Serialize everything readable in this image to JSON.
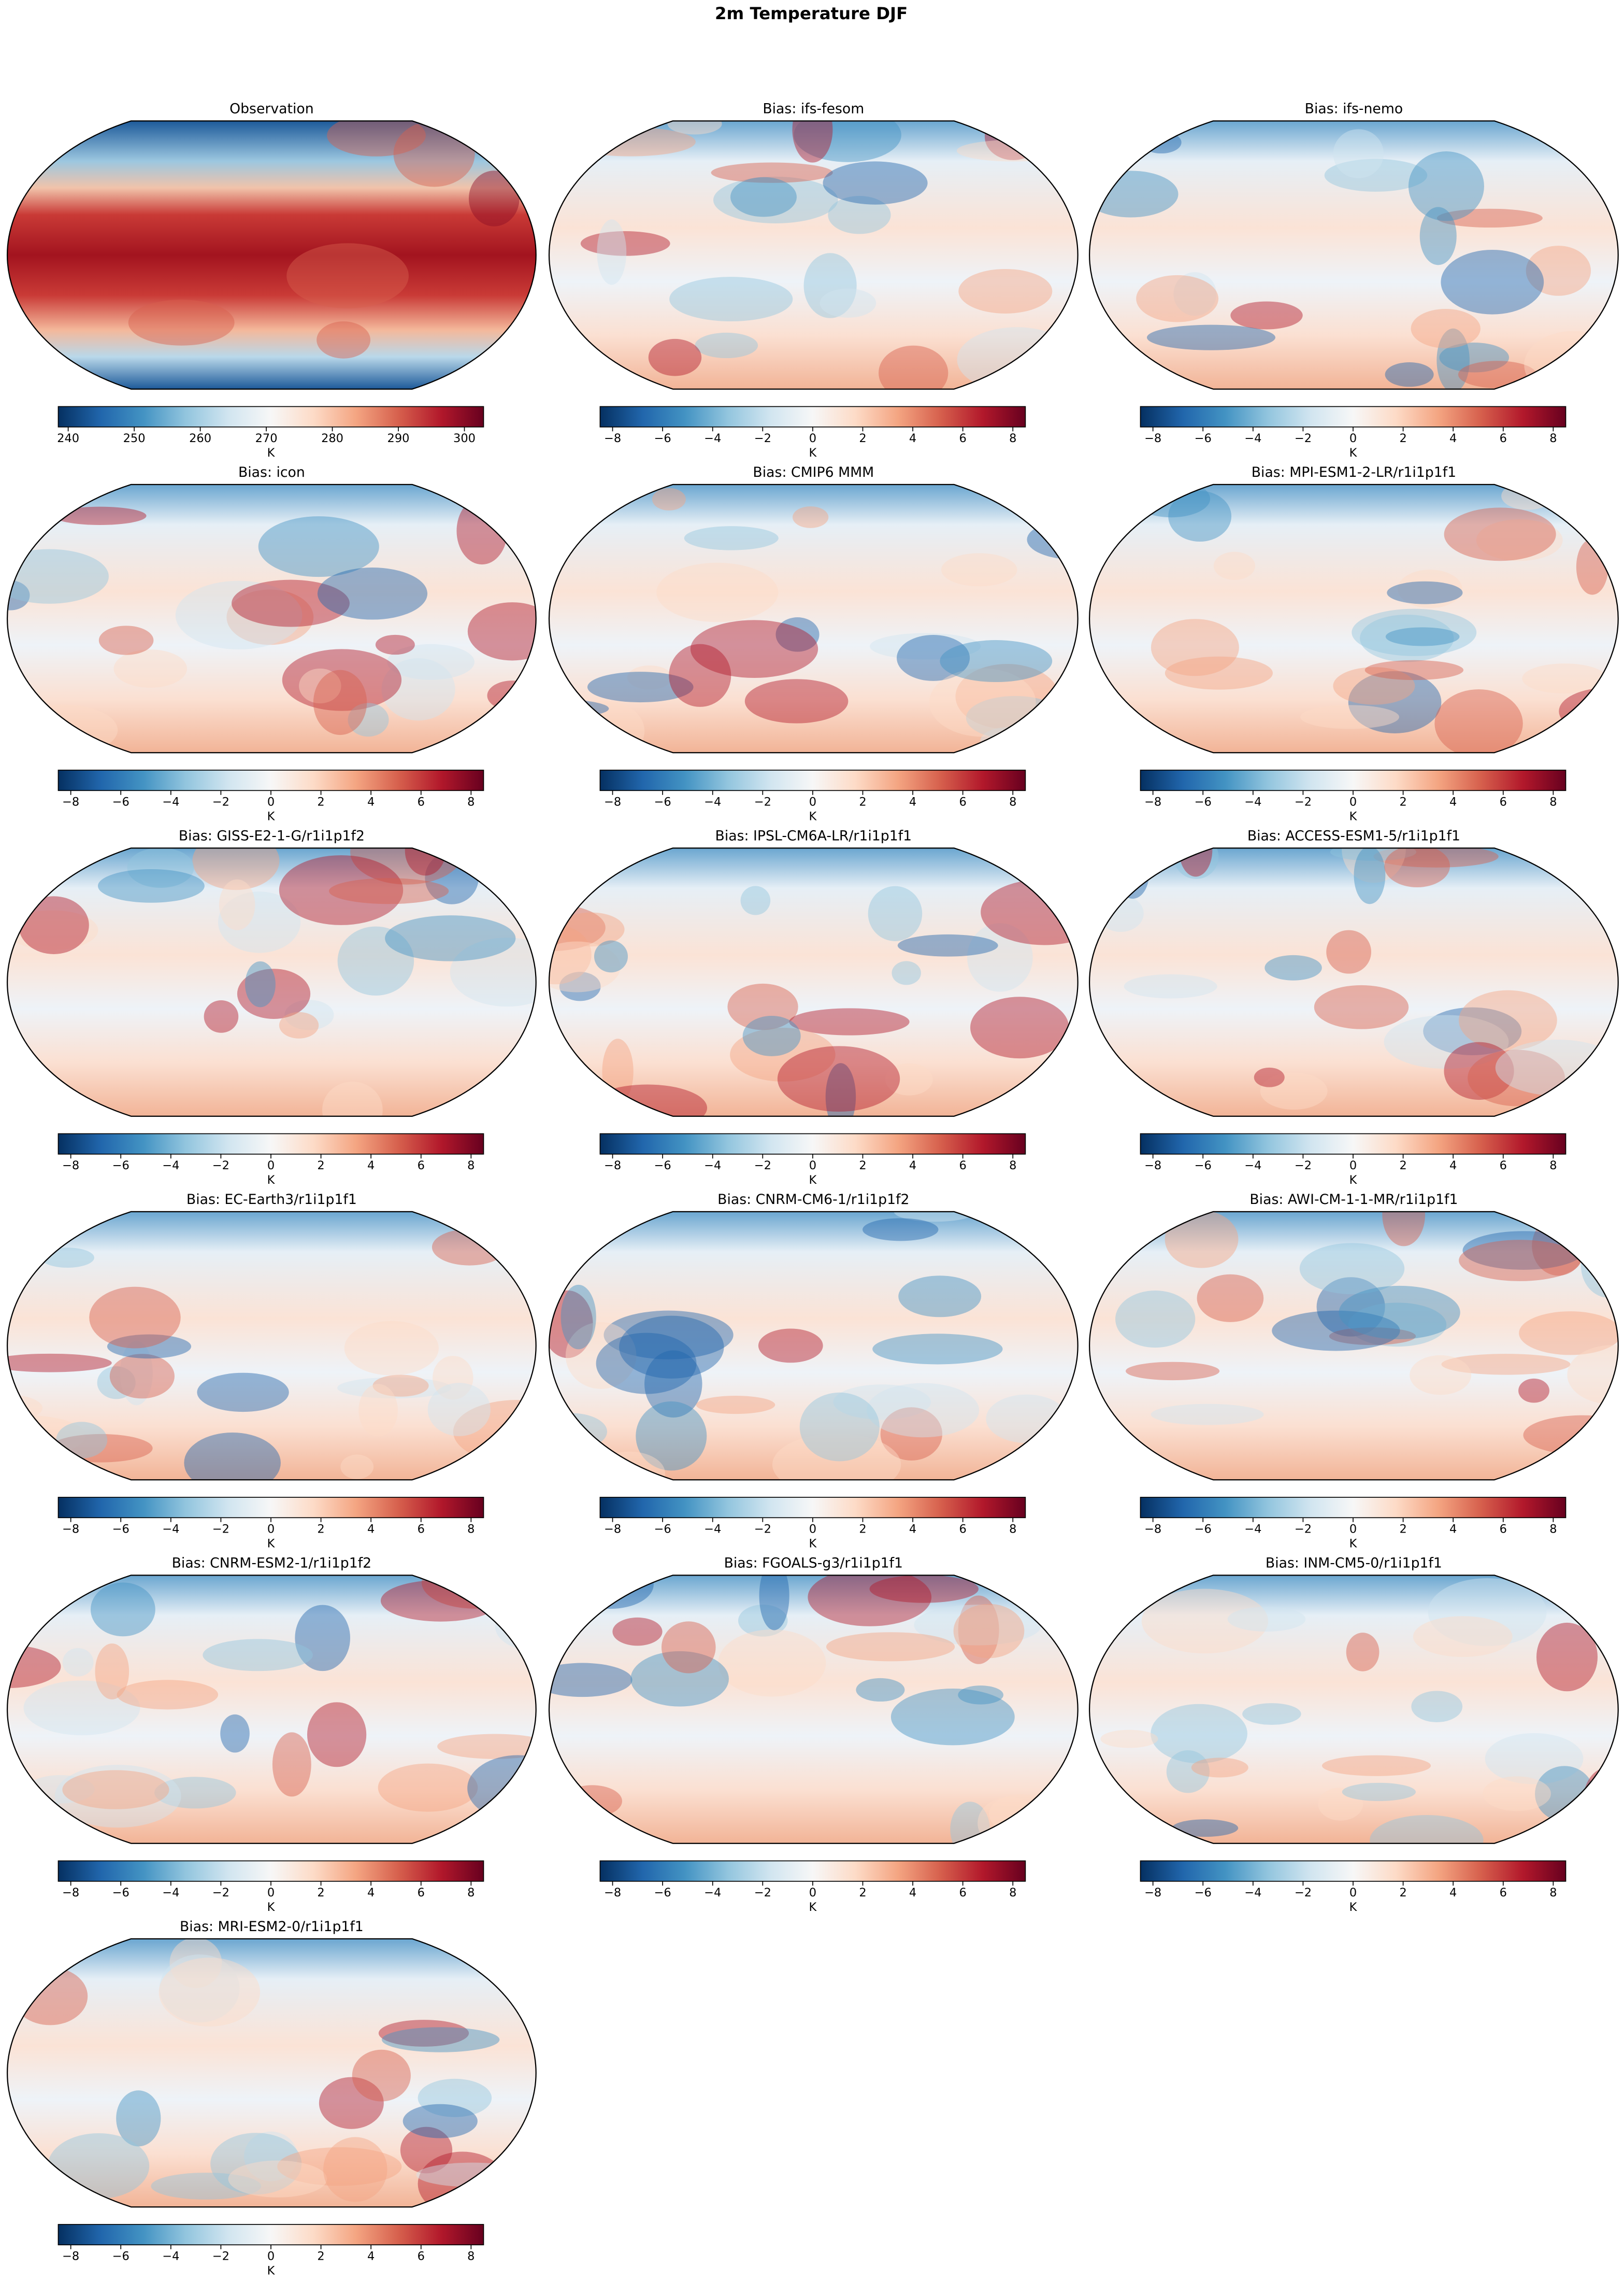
{
  "title": "2m Temperature DJF",
  "panels": [
    {
      "title": "Observation",
      "colorbar": {
        "label": "K",
        "lim": [
          238.5,
          302.9
        ],
        "ticks": [
          240,
          250,
          260,
          270,
          280,
          290,
          300
        ]
      }
    },
    {
      "title": "Bias: ifs-fesom",
      "colorbar": {
        "label": "K",
        "lim": [
          -8.5,
          8.5
        ],
        "ticks": [
          {
            "value": -8,
            "label": "−8"
          },
          {
            "value": -6,
            "label": "−6"
          },
          {
            "value": -4,
            "label": "−4"
          },
          {
            "value": -2,
            "label": "−2"
          },
          0,
          2,
          4,
          6,
          8
        ]
      }
    },
    {
      "title": "Bias: ifs-nemo",
      "colorbar": {
        "label": "K",
        "lim": [
          -8.5,
          8.5
        ],
        "ticks": [
          {
            "value": -8,
            "label": "−8"
          },
          {
            "value": -6,
            "label": "−6"
          },
          {
            "value": -4,
            "label": "−4"
          },
          {
            "value": -2,
            "label": "−2"
          },
          0,
          2,
          4,
          6,
          8
        ]
      }
    },
    {
      "title": "Bias: icon",
      "colorbar": {
        "label": "K",
        "lim": [
          -8.5,
          8.5
        ],
        "ticks": [
          {
            "value": -8,
            "label": "−8"
          },
          {
            "value": -6,
            "label": "−6"
          },
          {
            "value": -4,
            "label": "−4"
          },
          {
            "value": -2,
            "label": "−2"
          },
          0,
          2,
          4,
          6,
          8
        ]
      }
    },
    {
      "title": "Bias: CMIP6 MMM",
      "colorbar": {
        "label": "K",
        "lim": [
          -8.5,
          8.5
        ],
        "ticks": [
          {
            "value": -8,
            "label": "−8"
          },
          {
            "value": -6,
            "label": "−6"
          },
          {
            "value": -4,
            "label": "−4"
          },
          {
            "value": -2,
            "label": "−2"
          },
          0,
          2,
          4,
          6,
          8
        ]
      }
    },
    {
      "title": "Bias: MPI-ESM1-2-LR/r1i1p1f1",
      "colorbar": {
        "label": "K",
        "lim": [
          -8.5,
          8.5
        ],
        "ticks": [
          {
            "value": -8,
            "label": "−8"
          },
          {
            "value": -6,
            "label": "−6"
          },
          {
            "value": -4,
            "label": "−4"
          },
          {
            "value": -2,
            "label": "−2"
          },
          0,
          2,
          4,
          6,
          8
        ]
      }
    },
    {
      "title": "Bias: GISS-E2-1-G/r1i1p1f2",
      "colorbar": {
        "label": "K",
        "lim": [
          -8.5,
          8.5
        ],
        "ticks": [
          {
            "value": -8,
            "label": "−8"
          },
          {
            "value": -6,
            "label": "−6"
          },
          {
            "value": -4,
            "label": "−4"
          },
          {
            "value": -2,
            "label": "−2"
          },
          0,
          2,
          4,
          6,
          8
        ]
      }
    },
    {
      "title": "Bias: IPSL-CM6A-LR/r1i1p1f1",
      "colorbar": {
        "label": "K",
        "lim": [
          -8.5,
          8.5
        ],
        "ticks": [
          {
            "value": -8,
            "label": "−8"
          },
          {
            "value": -6,
            "label": "−6"
          },
          {
            "value": -4,
            "label": "−4"
          },
          {
            "value": -2,
            "label": "−2"
          },
          0,
          2,
          4,
          6,
          8
        ]
      }
    },
    {
      "title": "Bias: ACCESS-ESM1-5/r1i1p1f1",
      "colorbar": {
        "label": "K",
        "lim": [
          -8.5,
          8.5
        ],
        "ticks": [
          {
            "value": -8,
            "label": "−8"
          },
          {
            "value": -6,
            "label": "−6"
          },
          {
            "value": -4,
            "label": "−4"
          },
          {
            "value": -2,
            "label": "−2"
          },
          0,
          2,
          4,
          6,
          8
        ]
      }
    },
    {
      "title": "Bias: EC-Earth3/r1i1p1f1",
      "colorbar": {
        "label": "K",
        "lim": [
          -8.5,
          8.5
        ],
        "ticks": [
          {
            "value": -8,
            "label": "−8"
          },
          {
            "value": -6,
            "label": "−6"
          },
          {
            "value": -4,
            "label": "−4"
          },
          {
            "value": -2,
            "label": "−2"
          },
          0,
          2,
          4,
          6,
          8
        ]
      }
    },
    {
      "title": "Bias: CNRM-CM6-1/r1i1p1f2",
      "colorbar": {
        "label": "K",
        "lim": [
          -8.5,
          8.5
        ],
        "ticks": [
          {
            "value": -8,
            "label": "−8"
          },
          {
            "value": -6,
            "label": "−6"
          },
          {
            "value": -4,
            "label": "−4"
          },
          {
            "value": -2,
            "label": "−2"
          },
          0,
          2,
          4,
          6,
          8
        ]
      }
    },
    {
      "title": "Bias: AWI-CM-1-1-MR/r1i1p1f1",
      "colorbar": {
        "label": "K",
        "lim": [
          -8.5,
          8.5
        ],
        "ticks": [
          {
            "value": -8,
            "label": "−8"
          },
          {
            "value": -6,
            "label": "−6"
          },
          {
            "value": -4,
            "label": "−4"
          },
          {
            "value": -2,
            "label": "−2"
          },
          0,
          2,
          4,
          6,
          8
        ]
      }
    },
    {
      "title": "Bias: CNRM-ESM2-1/r1i1p1f2",
      "colorbar": {
        "label": "K",
        "lim": [
          -8.5,
          8.5
        ],
        "ticks": [
          {
            "value": -8,
            "label": "−8"
          },
          {
            "value": -6,
            "label": "−6"
          },
          {
            "value": -4,
            "label": "−4"
          },
          {
            "value": -2,
            "label": "−2"
          },
          0,
          2,
          4,
          6,
          8
        ]
      }
    },
    {
      "title": "Bias: FGOALS-g3/r1i1p1f1",
      "colorbar": {
        "label": "K",
        "lim": [
          -8.5,
          8.5
        ],
        "ticks": [
          {
            "value": -8,
            "label": "−8"
          },
          {
            "value": -6,
            "label": "−6"
          },
          {
            "value": -4,
            "label": "−4"
          },
          {
            "value": -2,
            "label": "−2"
          },
          0,
          2,
          4,
          6,
          8
        ]
      }
    },
    {
      "title": "Bias: INM-CM5-0/r1i1p1f1",
      "colorbar": {
        "label": "K",
        "lim": [
          -8.5,
          8.5
        ],
        "ticks": [
          {
            "value": -8,
            "label": "−8"
          },
          {
            "value": -6,
            "label": "−6"
          },
          {
            "value": -4,
            "label": "−4"
          },
          {
            "value": -2,
            "label": "−2"
          },
          0,
          2,
          4,
          6,
          8
        ]
      }
    },
    {
      "title": "Bias: MRI-ESM2-0/r1i1p1f1",
      "colorbar": {
        "label": "K",
        "lim": [
          -8.5,
          8.5
        ],
        "ticks": [
          {
            "value": -8,
            "label": "−8"
          },
          {
            "value": -6,
            "label": "−6"
          },
          {
            "value": -4,
            "label": "−4"
          },
          {
            "value": -2,
            "label": "−2"
          },
          0,
          2,
          4,
          6,
          8
        ]
      }
    }
  ]
}
